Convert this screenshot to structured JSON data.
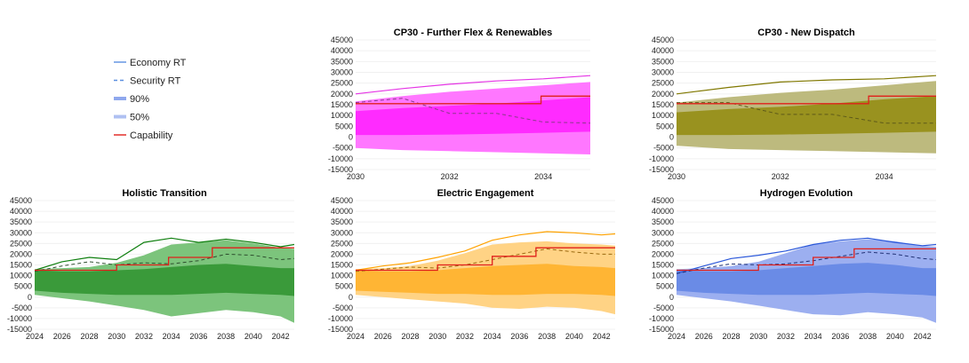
{
  "legend": {
    "items": [
      {
        "label": "Economy RT",
        "style": "solid",
        "color": "#5B8FE0"
      },
      {
        "label": "Security RT",
        "style": "dashed",
        "color": "#5B8FE0"
      },
      {
        "label": "90%",
        "style": "band",
        "color": "#8FA8EE"
      },
      {
        "label": "50%",
        "style": "band",
        "color": "#AFC0F2"
      },
      {
        "label": "Capability",
        "style": "solid",
        "color": "#E0201B"
      }
    ]
  },
  "chart_data": [
    {
      "id": "cp30-flex",
      "type": "area",
      "title": "CP30 - Further Flex & Renewables",
      "xlim": [
        2030,
        2035
      ],
      "ylim": [
        -15000,
        45000
      ],
      "xticks": [
        2030,
        2032,
        2034
      ],
      "yticks": [
        -15000,
        -10000,
        -5000,
        0,
        5000,
        10000,
        15000,
        20000,
        25000,
        30000,
        35000,
        40000,
        45000
      ],
      "colors": {
        "line": "#E535E5",
        "outer": "#FF77FF",
        "inner": "#FF2BFF",
        "dashed": "#8A3A8A"
      },
      "x": [
        2030,
        2031,
        2032,
        2033,
        2034,
        2035
      ],
      "economy": [
        20000,
        22500,
        24500,
        26000,
        27000,
        28500
      ],
      "security": [
        16000,
        18000,
        11000,
        11000,
        7000,
        6500
      ],
      "p90_low": [
        -5000,
        -6000,
        -6500,
        -7000,
        -7500,
        -8000
      ],
      "p90_high": [
        16500,
        19000,
        21000,
        22500,
        24000,
        25500
      ],
      "p50_low": [
        1000,
        1000,
        1200,
        1500,
        2000,
        2500
      ],
      "p50_high": [
        12000,
        13500,
        14500,
        15500,
        17000,
        18500
      ],
      "capability_steps": [
        [
          2030,
          15500
        ],
        [
          2033.95,
          15500
        ],
        [
          2033.95,
          19000
        ],
        [
          2035,
          19000
        ]
      ]
    },
    {
      "id": "cp30-dispatch",
      "type": "area",
      "title": "CP30 - New Dispatch",
      "xlim": [
        2030,
        2035
      ],
      "ylim": [
        -15000,
        45000
      ],
      "xticks": [
        2030,
        2032,
        2034
      ],
      "yticks": [
        -15000,
        -10000,
        -5000,
        0,
        5000,
        10000,
        15000,
        20000,
        25000,
        30000,
        35000,
        40000,
        45000
      ],
      "colors": {
        "line": "#807800",
        "outer": "#BDBA7E",
        "inner": "#99921F",
        "dashed": "#5E5A1A"
      },
      "x": [
        2030,
        2031,
        2032,
        2033,
        2034,
        2035
      ],
      "economy": [
        20000,
        23000,
        25500,
        26500,
        27000,
        28500
      ],
      "security": [
        16000,
        16000,
        10500,
        10500,
        6500,
        6500
      ],
      "p90_low": [
        -4000,
        -5500,
        -6000,
        -6500,
        -7000,
        -7500
      ],
      "p90_high": [
        16000,
        18500,
        20500,
        22000,
        24000,
        26000
      ],
      "p50_low": [
        1000,
        1000,
        1200,
        1500,
        2000,
        2500
      ],
      "p50_high": [
        11500,
        13000,
        14000,
        15500,
        17500,
        19000
      ],
      "capability_steps": [
        [
          2030,
          15500
        ],
        [
          2033.7,
          15500
        ],
        [
          2033.7,
          19000
        ],
        [
          2035,
          19000
        ]
      ]
    },
    {
      "id": "holistic",
      "type": "area",
      "title": "Holistic Transition",
      "xlim": [
        2024,
        2043
      ],
      "ylim": [
        -15000,
        45000
      ],
      "xticks": [
        2024,
        2026,
        2028,
        2030,
        2032,
        2034,
        2036,
        2038,
        2040,
        2042
      ],
      "yticks": [
        -15000,
        -10000,
        -5000,
        0,
        5000,
        10000,
        15000,
        20000,
        25000,
        30000,
        35000,
        40000,
        45000
      ],
      "colors": {
        "line": "#0F7F0F",
        "outer": "#7CC47C",
        "inner": "#3A9A3A",
        "dashed": "#2F4F2F"
      },
      "x": [
        2024,
        2026,
        2028,
        2030,
        2032,
        2034,
        2036,
        2038,
        2040,
        2042,
        2043
      ],
      "economy": [
        12500,
        16500,
        18500,
        17500,
        25500,
        27500,
        25500,
        27000,
        25500,
        23500,
        24500
      ],
      "security": [
        12000,
        14500,
        16500,
        15000,
        16000,
        15500,
        17000,
        20000,
        19500,
        17500,
        18000
      ],
      "p90_low": [
        1000,
        -500,
        -2000,
        -4000,
        -6000,
        -9000,
        -7500,
        -6000,
        -7000,
        -9000,
        -12000
      ],
      "p90_high": [
        13000,
        13500,
        14000,
        16000,
        19500,
        24500,
        25500,
        26500,
        25000,
        23000,
        22500
      ],
      "p50_low": [
        3000,
        2000,
        1500,
        1000,
        1000,
        1000,
        1500,
        2000,
        1500,
        1000,
        500
      ],
      "p50_high": [
        12500,
        12000,
        12000,
        12500,
        13000,
        14000,
        15000,
        15500,
        14500,
        13500,
        13500
      ],
      "capability_steps": [
        [
          2024,
          12500
        ],
        [
          2030,
          12500
        ],
        [
          2030,
          15000
        ],
        [
          2033.8,
          15000
        ],
        [
          2033.8,
          18500
        ],
        [
          2037,
          18500
        ],
        [
          2037,
          23000
        ],
        [
          2043,
          23000
        ]
      ]
    },
    {
      "id": "electric",
      "type": "area",
      "title": "Electric Engagement",
      "xlim": [
        2024,
        2043
      ],
      "ylim": [
        -15000,
        45000
      ],
      "xticks": [
        2024,
        2026,
        2028,
        2030,
        2032,
        2034,
        2036,
        2038,
        2040,
        2042
      ],
      "yticks": [
        -15000,
        -10000,
        -5000,
        0,
        5000,
        10000,
        15000,
        20000,
        25000,
        30000,
        35000,
        40000,
        45000
      ],
      "colors": {
        "line": "#FFA200",
        "outer": "#FFD385",
        "inner": "#FFB534",
        "dashed": "#9A6A10"
      },
      "x": [
        2024,
        2026,
        2028,
        2030,
        2032,
        2034,
        2036,
        2038,
        2040,
        2042,
        2043
      ],
      "economy": [
        12500,
        14500,
        16000,
        18500,
        21500,
        26500,
        29000,
        30500,
        30000,
        29000,
        29500
      ],
      "security": [
        12000,
        13000,
        14000,
        13500,
        15000,
        17500,
        20000,
        22500,
        21000,
        20000,
        20000
      ],
      "p90_low": [
        1000,
        0,
        -1000,
        -2000,
        -3000,
        -5000,
        -5500,
        -4500,
        -5000,
        -6500,
        -8000
      ],
      "p90_high": [
        13000,
        13500,
        14500,
        17000,
        20500,
        24500,
        25500,
        26000,
        25000,
        24500,
        24000
      ],
      "p50_low": [
        3000,
        2500,
        2000,
        1500,
        1500,
        1000,
        1000,
        1500,
        1500,
        1000,
        500
      ],
      "p50_high": [
        12500,
        12000,
        12000,
        12500,
        13500,
        14500,
        15000,
        15500,
        14500,
        14000,
        13500
      ],
      "capability_steps": [
        [
          2024,
          12500
        ],
        [
          2030,
          12500
        ],
        [
          2030,
          15000
        ],
        [
          2034,
          15000
        ],
        [
          2034,
          19000
        ],
        [
          2037.2,
          19000
        ],
        [
          2037.2,
          23000
        ],
        [
          2043,
          23000
        ]
      ]
    },
    {
      "id": "hydrogen",
      "type": "area",
      "title": "Hydrogen Evolution",
      "xlim": [
        2024,
        2043
      ],
      "ylim": [
        -15000,
        45000
      ],
      "xticks": [
        2024,
        2026,
        2028,
        2030,
        2032,
        2034,
        2036,
        2038,
        2040,
        2042
      ],
      "yticks": [
        -15000,
        -10000,
        -5000,
        0,
        5000,
        10000,
        15000,
        20000,
        25000,
        30000,
        35000,
        40000,
        45000
      ],
      "colors": {
        "line": "#2A57D9",
        "outer": "#9CAFF0",
        "inner": "#6A8BE6",
        "dashed": "#223377"
      },
      "x": [
        2024,
        2026,
        2028,
        2030,
        2032,
        2034,
        2036,
        2038,
        2040,
        2042,
        2043
      ],
      "economy": [
        11000,
        14500,
        18000,
        19500,
        21500,
        24500,
        26500,
        27500,
        25500,
        24000,
        24500
      ],
      "security": [
        11000,
        13500,
        15500,
        15000,
        15500,
        17000,
        19000,
        21000,
        20000,
        18000,
        17500
      ],
      "p90_low": [
        1000,
        -500,
        -2000,
        -4000,
        -6000,
        -8000,
        -8500,
        -7000,
        -8000,
        -9500,
        -12000
      ],
      "p90_high": [
        13000,
        13500,
        14500,
        16500,
        20500,
        24500,
        26000,
        27000,
        26000,
        24000,
        23500
      ],
      "p50_low": [
        3000,
        2000,
        1500,
        1000,
        1000,
        1000,
        1500,
        2000,
        1500,
        1000,
        500
      ],
      "p50_high": [
        12500,
        12000,
        12000,
        12500,
        13500,
        14500,
        15500,
        16000,
        15000,
        13500,
        13500
      ],
      "capability_steps": [
        [
          2024,
          12500
        ],
        [
          2030,
          12500
        ],
        [
          2030,
          15000
        ],
        [
          2034,
          15000
        ],
        [
          2034,
          18500
        ],
        [
          2037,
          18500
        ],
        [
          2037,
          22500
        ],
        [
          2043,
          22500
        ]
      ]
    }
  ]
}
